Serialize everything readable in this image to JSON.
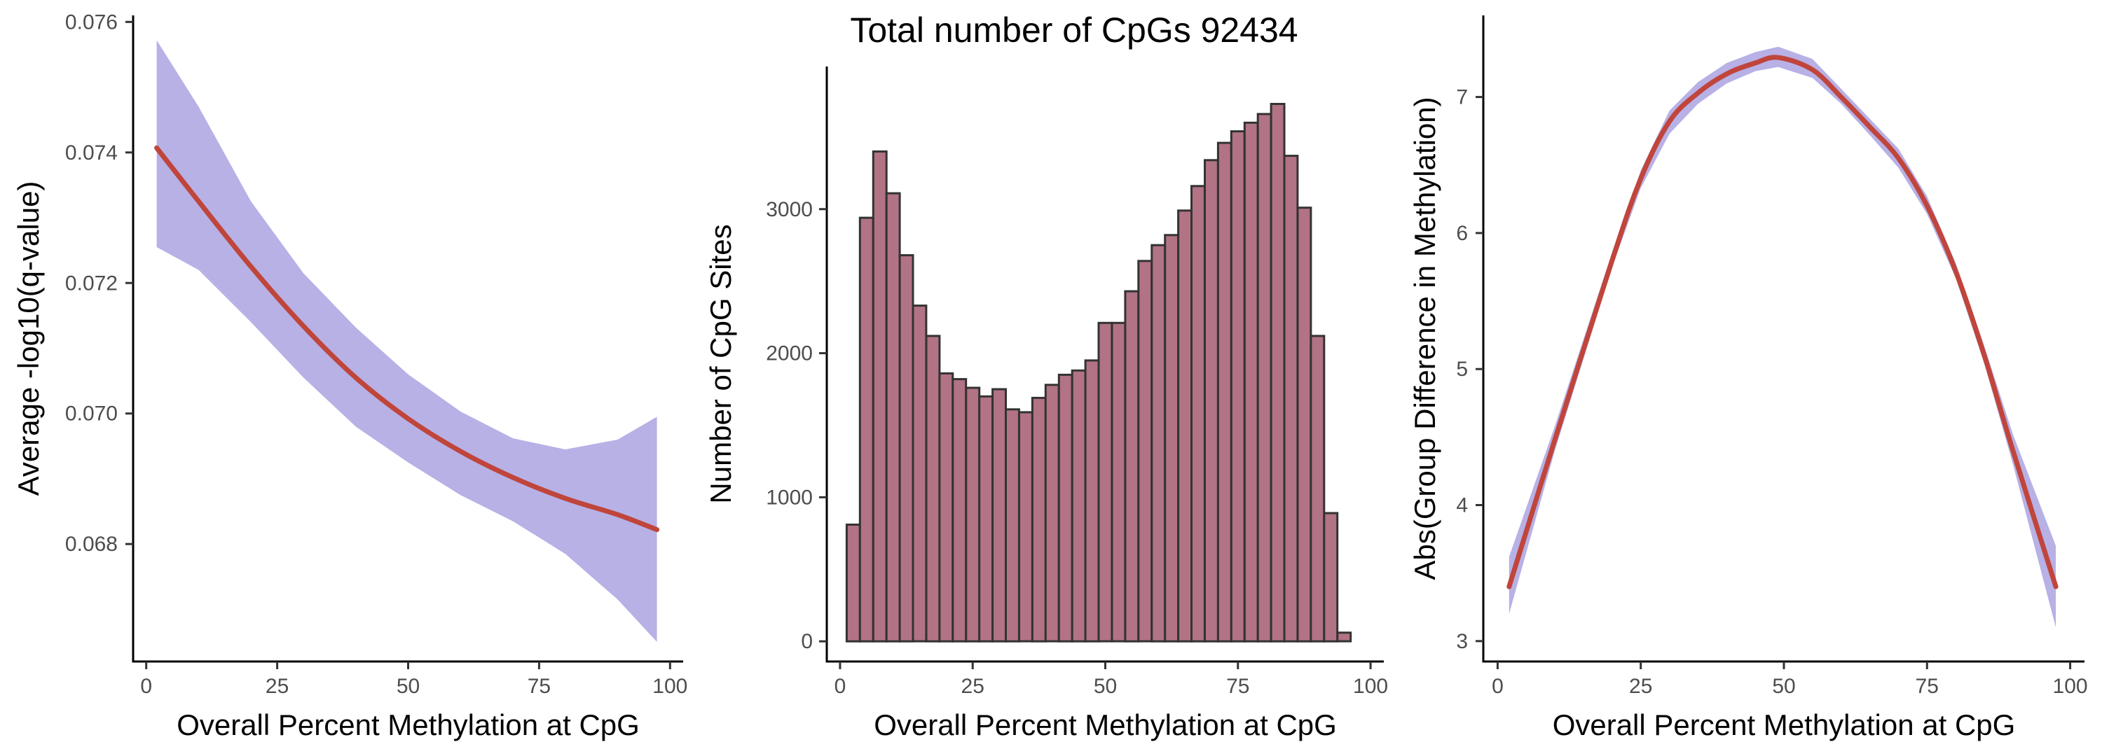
{
  "colors": {
    "fit_line": "#C0453B",
    "ribbon": "#B7B1E6",
    "bar_fill": "#B27385",
    "bar_stroke": "#333333"
  },
  "chart_data": [
    {
      "type": "line",
      "title": "",
      "xlabel": "Overall Percent Methylation at CpG",
      "ylabel": "Average -log10(q-value)",
      "xlim": [
        -2.5,
        102.5
      ],
      "ylim": [
        0.0662,
        0.0761
      ],
      "xticks": [
        0,
        25,
        50,
        75,
        100
      ],
      "xtick_labels": [
        "0",
        "25",
        "50",
        "75",
        "100"
      ],
      "yticks": [
        0.068,
        0.07,
        0.072,
        0.074,
        0.076
      ],
      "ytick_labels": [
        "0.068",
        "0.070",
        "0.072",
        "0.074",
        "0.076"
      ],
      "grid": false,
      "series": [
        {
          "x": [
            2,
            10,
            20,
            30,
            40,
            50,
            60,
            70,
            80,
            90,
            97.5
          ],
          "y": [
            0.07407,
            0.07325,
            0.07225,
            0.07134,
            0.07055,
            0.06992,
            0.06942,
            0.06902,
            0.0687,
            0.06845,
            0.06822
          ],
          "ci_lower": [
            0.07255,
            0.0722,
            0.0714,
            0.07055,
            0.0698,
            0.06925,
            0.06875,
            0.06835,
            0.06785,
            0.06715,
            0.0665
          ],
          "ci_upper": [
            0.07572,
            0.0747,
            0.07325,
            0.07215,
            0.07132,
            0.0706,
            0.07003,
            0.06962,
            0.06945,
            0.0696,
            0.06995
          ]
        }
      ]
    },
    {
      "type": "bar",
      "title": "Total number of CpGs 92434",
      "xlabel": "Overall Percent Methylation at CpG",
      "ylabel": "Number of CpG Sites",
      "xlim": [
        -2.5,
        102.5
      ],
      "ylim": [
        -140,
        3990
      ],
      "xticks": [
        0,
        25,
        50,
        75,
        100
      ],
      "xtick_labels": [
        "0",
        "25",
        "50",
        "75",
        "100"
      ],
      "yticks": [
        0,
        1000,
        2000,
        3000
      ],
      "ytick_labels": [
        "0",
        "1000",
        "2000",
        "3000"
      ],
      "grid": false,
      "bin_start": 1.25,
      "bin_width": 2.5,
      "values": [
        810,
        2940,
        3400,
        3110,
        2680,
        2330,
        2120,
        1860,
        1820,
        1760,
        1700,
        1750,
        1610,
        1590,
        1690,
        1780,
        1850,
        1880,
        1950,
        2210,
        2210,
        2430,
        2640,
        2750,
        2820,
        2990,
        3160,
        3340,
        3460,
        3540,
        3600,
        3660,
        3730,
        3370,
        3010,
        2120,
        890,
        60
      ]
    },
    {
      "type": "line",
      "title": "",
      "xlabel": "Overall Percent Methylation at CpG",
      "ylabel": "Abs(Group Difference in Methylation)",
      "xlim": [
        -2.5,
        102.5
      ],
      "ylim": [
        2.85,
        7.6
      ],
      "xticks": [
        0,
        25,
        50,
        75,
        100
      ],
      "xtick_labels": [
        "0",
        "25",
        "50",
        "75",
        "100"
      ],
      "yticks": [
        3,
        4,
        5,
        6,
        7
      ],
      "ytick_labels": [
        "3",
        "4",
        "5",
        "6",
        "7"
      ],
      "grid": false,
      "series": [
        {
          "x": [
            2,
            10,
            20,
            25,
            30,
            35,
            40,
            45,
            49,
            55,
            60,
            65,
            70,
            75,
            80,
            85,
            90,
            97.5
          ],
          "y": [
            3.4,
            4.48,
            5.8,
            6.4,
            6.82,
            7.03,
            7.17,
            7.25,
            7.29,
            7.2,
            7.0,
            6.78,
            6.55,
            6.2,
            5.72,
            5.1,
            4.4,
            3.4
          ],
          "ci_lower": [
            3.2,
            4.4,
            5.75,
            6.33,
            6.73,
            6.95,
            7.1,
            7.19,
            7.22,
            7.14,
            6.95,
            6.72,
            6.48,
            6.14,
            5.67,
            5.04,
            4.3,
            3.1
          ],
          "ci_upper": [
            3.62,
            4.58,
            5.86,
            6.46,
            6.9,
            7.11,
            7.25,
            7.33,
            7.37,
            7.28,
            7.06,
            6.84,
            6.62,
            6.27,
            5.78,
            5.17,
            4.52,
            3.7
          ]
        }
      ]
    }
  ]
}
